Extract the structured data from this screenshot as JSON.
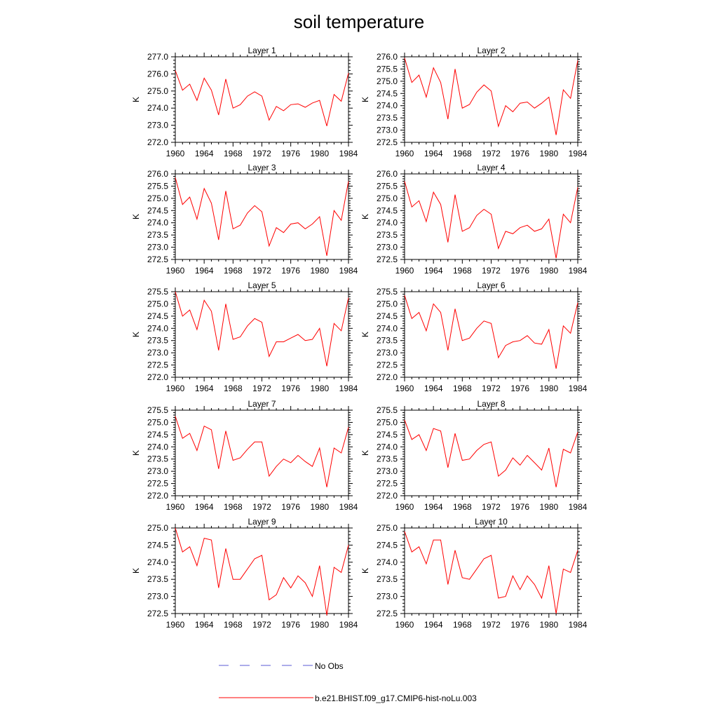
{
  "figure": {
    "title": "soil temperature"
  },
  "legend": {
    "placement": "bottom-center",
    "entries": [
      {
        "label": "No Obs",
        "color": "#5b5bd6",
        "style": "dashed"
      },
      {
        "label": "b.e21.BHIST.f09_g17.CMIP6-hist-noLu.003",
        "color": "#ff0000",
        "style": "solid"
      }
    ]
  },
  "chart_data": [
    {
      "type": "line",
      "title": "Layer 1",
      "xlabel": "",
      "ylabel": "K",
      "xlim": [
        1960,
        1984
      ],
      "ylim": [
        272.0,
        277.0
      ],
      "x_ticks": [
        "1960",
        "1964",
        "1968",
        "1972",
        "1976",
        "1980",
        "1984"
      ],
      "y_ticks": [
        "272.0",
        "273.0",
        "274.0",
        "275.0",
        "276.0",
        "277.0"
      ],
      "series": [
        {
          "color": "#ff0000",
          "x": [
            1960,
            1961,
            1962,
            1963,
            1964,
            1965,
            1966,
            1967,
            1968,
            1969,
            1970,
            1971,
            1972,
            1973,
            1974,
            1975,
            1976,
            1977,
            1978,
            1979,
            1980,
            1981,
            1982,
            1983,
            1984
          ],
          "values": [
            276.2,
            275.05,
            275.4,
            274.45,
            275.75,
            275.05,
            273.6,
            275.7,
            274.0,
            274.2,
            274.7,
            274.95,
            274.7,
            273.3,
            274.1,
            273.85,
            274.2,
            274.25,
            274.05,
            274.3,
            274.45,
            272.95,
            274.8,
            274.4,
            276.05
          ]
        }
      ]
    },
    {
      "type": "line",
      "title": "Layer 2",
      "xlabel": "",
      "ylabel": "K",
      "xlim": [
        1960,
        1984
      ],
      "ylim": [
        272.5,
        276.0
      ],
      "x_ticks": [
        "1960",
        "1964",
        "1968",
        "1972",
        "1976",
        "1980",
        "1984"
      ],
      "y_ticks": [
        "272.5",
        "273.0",
        "273.5",
        "274.0",
        "274.5",
        "275.0",
        "275.5",
        "276.0"
      ],
      "series": [
        {
          "color": "#ff0000",
          "x": [
            1960,
            1961,
            1962,
            1963,
            1964,
            1965,
            1966,
            1967,
            1968,
            1969,
            1970,
            1971,
            1972,
            1973,
            1974,
            1975,
            1976,
            1977,
            1978,
            1979,
            1980,
            1981,
            1982,
            1983,
            1984
          ],
          "values": [
            275.95,
            274.95,
            275.25,
            274.35,
            275.55,
            274.95,
            273.45,
            275.5,
            273.9,
            274.05,
            274.55,
            274.85,
            274.6,
            273.15,
            274.0,
            273.75,
            274.1,
            274.15,
            273.9,
            274.1,
            274.35,
            272.8,
            274.65,
            274.3,
            275.85
          ]
        }
      ]
    },
    {
      "type": "line",
      "title": "Layer 3",
      "xlabel": "",
      "ylabel": "K",
      "xlim": [
        1960,
        1984
      ],
      "ylim": [
        272.5,
        276.0
      ],
      "x_ticks": [
        "1960",
        "1964",
        "1968",
        "1972",
        "1976",
        "1980",
        "1984"
      ],
      "y_ticks": [
        "272.5",
        "273.0",
        "273.5",
        "274.0",
        "274.5",
        "275.0",
        "275.5",
        "276.0"
      ],
      "series": [
        {
          "color": "#ff0000",
          "x": [
            1960,
            1961,
            1962,
            1963,
            1964,
            1965,
            1966,
            1967,
            1968,
            1969,
            1970,
            1971,
            1972,
            1973,
            1974,
            1975,
            1976,
            1977,
            1978,
            1979,
            1980,
            1981,
            1982,
            1983,
            1984
          ],
          "values": [
            275.85,
            274.75,
            275.05,
            274.15,
            275.4,
            274.8,
            273.3,
            275.3,
            273.75,
            273.9,
            274.4,
            274.7,
            274.45,
            273.05,
            273.8,
            273.6,
            273.95,
            274.0,
            273.75,
            273.95,
            274.25,
            272.65,
            274.5,
            274.1,
            275.7
          ]
        }
      ]
    },
    {
      "type": "line",
      "title": "Layer 4",
      "xlabel": "",
      "ylabel": "K",
      "xlim": [
        1960,
        1984
      ],
      "ylim": [
        272.5,
        276.0
      ],
      "x_ticks": [
        "1960",
        "1964",
        "1968",
        "1972",
        "1976",
        "1980",
        "1984"
      ],
      "y_ticks": [
        "272.5",
        "273.0",
        "273.5",
        "274.0",
        "274.5",
        "275.0",
        "275.5",
        "276.0"
      ],
      "series": [
        {
          "color": "#ff0000",
          "x": [
            1960,
            1961,
            1962,
            1963,
            1964,
            1965,
            1966,
            1967,
            1968,
            1969,
            1970,
            1971,
            1972,
            1973,
            1974,
            1975,
            1976,
            1977,
            1978,
            1979,
            1980,
            1981,
            1982,
            1983,
            1984
          ],
          "values": [
            275.7,
            274.65,
            274.9,
            274.05,
            275.25,
            274.75,
            273.2,
            275.15,
            273.65,
            273.8,
            274.3,
            274.55,
            274.35,
            272.95,
            273.65,
            273.55,
            273.8,
            273.9,
            273.65,
            273.75,
            274.15,
            272.55,
            274.35,
            274.0,
            275.45
          ]
        }
      ]
    },
    {
      "type": "line",
      "title": "Layer 5",
      "xlabel": "",
      "ylabel": "K",
      "xlim": [
        1960,
        1984
      ],
      "ylim": [
        272.0,
        275.5
      ],
      "x_ticks": [
        "1960",
        "1964",
        "1968",
        "1972",
        "1976",
        "1980",
        "1984"
      ],
      "y_ticks": [
        "272.0",
        "272.5",
        "273.0",
        "273.5",
        "274.0",
        "274.5",
        "275.0",
        "275.5"
      ],
      "series": [
        {
          "color": "#ff0000",
          "x": [
            1960,
            1961,
            1962,
            1963,
            1964,
            1965,
            1966,
            1967,
            1968,
            1969,
            1970,
            1971,
            1972,
            1973,
            1974,
            1975,
            1976,
            1977,
            1978,
            1979,
            1980,
            1981,
            1982,
            1983,
            1984
          ],
          "values": [
            275.5,
            274.5,
            274.75,
            273.95,
            275.15,
            274.7,
            273.1,
            275.0,
            273.55,
            273.65,
            274.1,
            274.4,
            274.25,
            272.85,
            273.45,
            273.45,
            273.6,
            273.75,
            273.5,
            273.55,
            274.0,
            272.45,
            274.2,
            273.9,
            275.25
          ]
        }
      ]
    },
    {
      "type": "line",
      "title": "Layer 6",
      "xlabel": "",
      "ylabel": "K",
      "xlim": [
        1960,
        1984
      ],
      "ylim": [
        272.0,
        275.5
      ],
      "x_ticks": [
        "1960",
        "1964",
        "1968",
        "1972",
        "1976",
        "1980",
        "1984"
      ],
      "y_ticks": [
        "272.0",
        "272.5",
        "273.0",
        "273.5",
        "274.0",
        "274.5",
        "275.0",
        "275.5"
      ],
      "series": [
        {
          "color": "#ff0000",
          "x": [
            1960,
            1961,
            1962,
            1963,
            1964,
            1965,
            1966,
            1967,
            1968,
            1969,
            1970,
            1971,
            1972,
            1973,
            1974,
            1975,
            1976,
            1977,
            1978,
            1979,
            1980,
            1981,
            1982,
            1983,
            1984
          ],
          "values": [
            275.35,
            274.4,
            274.65,
            273.9,
            275.0,
            274.65,
            273.1,
            274.8,
            273.5,
            273.6,
            274.0,
            274.3,
            274.2,
            272.8,
            273.3,
            273.45,
            273.5,
            273.7,
            273.4,
            273.35,
            273.95,
            272.35,
            274.1,
            273.8,
            275.05
          ]
        }
      ]
    },
    {
      "type": "line",
      "title": "Layer 7",
      "xlabel": "",
      "ylabel": "K",
      "xlim": [
        1960,
        1984
      ],
      "ylim": [
        272.0,
        275.5
      ],
      "x_ticks": [
        "1960",
        "1964",
        "1968",
        "1972",
        "1976",
        "1980",
        "1984"
      ],
      "y_ticks": [
        "272.0",
        "272.5",
        "273.0",
        "273.5",
        "274.0",
        "274.5",
        "275.0",
        "275.5"
      ],
      "series": [
        {
          "color": "#ff0000",
          "x": [
            1960,
            1961,
            1962,
            1963,
            1964,
            1965,
            1966,
            1967,
            1968,
            1969,
            1970,
            1971,
            1972,
            1973,
            1974,
            1975,
            1976,
            1977,
            1978,
            1979,
            1980,
            1981,
            1982,
            1983,
            1984
          ],
          "values": [
            275.25,
            274.35,
            274.55,
            273.85,
            274.85,
            274.7,
            273.1,
            274.65,
            273.45,
            273.55,
            273.9,
            274.2,
            274.2,
            272.8,
            273.2,
            273.5,
            273.35,
            273.65,
            273.4,
            273.2,
            273.95,
            272.35,
            273.95,
            273.75,
            274.8
          ]
        }
      ]
    },
    {
      "type": "line",
      "title": "Layer 8",
      "xlabel": "",
      "ylabel": "K",
      "xlim": [
        1960,
        1984
      ],
      "ylim": [
        272.0,
        275.5
      ],
      "x_ticks": [
        "1960",
        "1964",
        "1968",
        "1972",
        "1976",
        "1980",
        "1984"
      ],
      "y_ticks": [
        "272.0",
        "272.5",
        "273.0",
        "273.5",
        "274.0",
        "274.5",
        "275.0",
        "275.5"
      ],
      "series": [
        {
          "color": "#ff0000",
          "x": [
            1960,
            1961,
            1962,
            1963,
            1964,
            1965,
            1966,
            1967,
            1968,
            1969,
            1970,
            1971,
            1972,
            1973,
            1974,
            1975,
            1976,
            1977,
            1978,
            1979,
            1980,
            1981,
            1982,
            1983,
            1984
          ],
          "values": [
            275.1,
            274.3,
            274.5,
            273.85,
            274.75,
            274.65,
            273.15,
            274.55,
            273.45,
            273.5,
            273.85,
            274.1,
            274.2,
            272.8,
            273.05,
            273.55,
            273.25,
            273.65,
            273.35,
            273.05,
            273.95,
            272.35,
            273.9,
            273.75,
            274.6
          ]
        }
      ]
    },
    {
      "type": "line",
      "title": "Layer 9",
      "xlabel": "",
      "ylabel": "K",
      "xlim": [
        1960,
        1984
      ],
      "ylim": [
        272.5,
        275.0
      ],
      "x_ticks": [
        "1960",
        "1964",
        "1968",
        "1972",
        "1976",
        "1980",
        "1984"
      ],
      "y_ticks": [
        "272.5",
        "273.0",
        "273.5",
        "274.0",
        "274.5",
        "275.0"
      ],
      "series": [
        {
          "color": "#ff0000",
          "x": [
            1960,
            1961,
            1962,
            1963,
            1964,
            1965,
            1966,
            1967,
            1968,
            1969,
            1970,
            1971,
            1972,
            1973,
            1974,
            1975,
            1976,
            1977,
            1978,
            1979,
            1980,
            1981,
            1982,
            1983,
            1984
          ],
          "values": [
            275.0,
            274.3,
            274.45,
            273.9,
            274.7,
            274.65,
            273.25,
            274.4,
            273.5,
            273.5,
            273.8,
            274.1,
            274.2,
            272.9,
            273.05,
            273.55,
            273.25,
            273.6,
            273.4,
            273.0,
            273.9,
            272.45,
            273.85,
            273.7,
            274.5
          ]
        }
      ]
    },
    {
      "type": "line",
      "title": "Layer 10",
      "xlabel": "",
      "ylabel": "K",
      "xlim": [
        1960,
        1984
      ],
      "ylim": [
        272.5,
        275.0
      ],
      "x_ticks": [
        "1960",
        "1964",
        "1968",
        "1972",
        "1976",
        "1980",
        "1984"
      ],
      "y_ticks": [
        "272.5",
        "273.0",
        "273.5",
        "274.0",
        "274.5",
        "275.0"
      ],
      "series": [
        {
          "color": "#ff0000",
          "x": [
            1960,
            1961,
            1962,
            1963,
            1964,
            1965,
            1966,
            1967,
            1968,
            1969,
            1970,
            1971,
            1972,
            1973,
            1974,
            1975,
            1976,
            1977,
            1978,
            1979,
            1980,
            1981,
            1982,
            1983,
            1984
          ],
          "values": [
            274.9,
            274.3,
            274.45,
            273.95,
            274.65,
            274.65,
            273.35,
            274.35,
            273.55,
            273.5,
            273.8,
            274.1,
            274.2,
            272.95,
            273.0,
            273.6,
            273.2,
            273.6,
            273.35,
            272.95,
            273.9,
            272.5,
            273.8,
            273.7,
            274.35
          ]
        }
      ]
    }
  ]
}
